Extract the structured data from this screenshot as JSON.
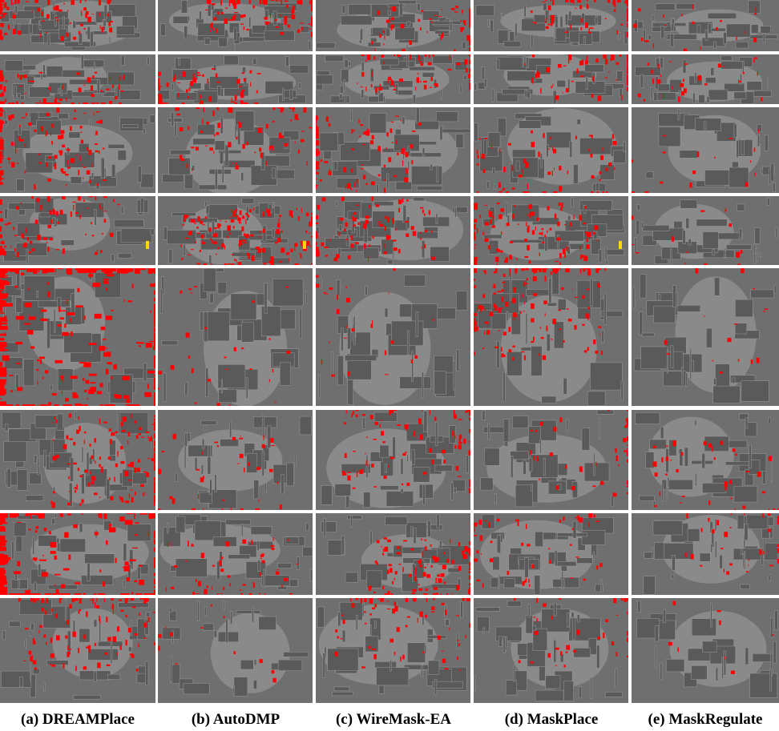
{
  "figure": {
    "columns": [
      {
        "key": "dreamplace",
        "label": "(a) DREAMPlace"
      },
      {
        "key": "autodmp",
        "label": "(b) AutoDMP"
      },
      {
        "key": "wiremask_ea",
        "label": "(c) WireMask-EA"
      },
      {
        "key": "maskplace",
        "label": "(d) MaskPlace"
      },
      {
        "key": "maskregulate",
        "label": "(e) MaskRegulate"
      }
    ],
    "colors": {
      "background": "#6f6f6f",
      "macro": "#5a5a5a",
      "cell_area": "#8a8a8a",
      "overflow_highlight": "#ff0000",
      "pin_marker": "#ffd800",
      "outline": "#9a9a9a"
    },
    "rows": 8
  }
}
